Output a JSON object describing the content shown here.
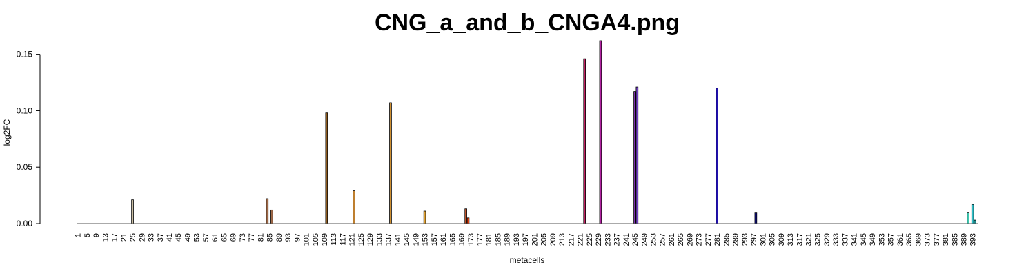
{
  "chart_data": {
    "type": "bar",
    "title": "CNG_a_and_b_CNGA4.png",
    "xlabel": "metacells",
    "ylabel": "log2FC",
    "n_bars": 395,
    "ylim": [
      0,
      0.162
    ],
    "yticks": [
      0.0,
      0.05,
      0.1,
      0.15
    ],
    "ytick_labels": [
      "0.00",
      "0.05",
      "0.10",
      "0.15"
    ],
    "xtick_labels": [
      "1",
      "5",
      "9",
      "13",
      "17",
      "21",
      "25",
      "29",
      "33",
      "37",
      "41",
      "45",
      "49",
      "53",
      "57",
      "61",
      "65",
      "69",
      "73",
      "77",
      "81",
      "85",
      "89",
      "93",
      "97",
      "101",
      "105",
      "109",
      "113",
      "117",
      "121",
      "125",
      "129",
      "133",
      "137",
      "141",
      "145",
      "149",
      "153",
      "157",
      "161",
      "165",
      "169",
      "173",
      "177",
      "181",
      "185",
      "189",
      "193",
      "197",
      "201",
      "205",
      "209",
      "213",
      "217",
      "221",
      "225",
      "229",
      "233",
      "237",
      "241",
      "245",
      "249",
      "253",
      "257",
      "261",
      "265",
      "269",
      "273",
      "277",
      "281",
      "285",
      "289",
      "293",
      "297",
      "301",
      "305",
      "309",
      "313",
      "317",
      "321",
      "325",
      "329",
      "333",
      "337",
      "341",
      "345",
      "349",
      "353",
      "357",
      "361",
      "365",
      "369",
      "373",
      "377",
      "381",
      "385",
      "389",
      "393"
    ],
    "bars": [
      {
        "metacell": 25,
        "value": 0.021,
        "color": "#c8bca0"
      },
      {
        "metacell": 84,
        "value": 0.022,
        "color": "#a06a48"
      },
      {
        "metacell": 86,
        "value": 0.012,
        "color": "#a06a48"
      },
      {
        "metacell": 110,
        "value": 0.098,
        "color": "#8c5a1e"
      },
      {
        "metacell": 122,
        "value": 0.029,
        "color": "#c08030"
      },
      {
        "metacell": 138,
        "value": 0.107,
        "color": "#d09030"
      },
      {
        "metacell": 153,
        "value": 0.011,
        "color": "#e0a030"
      },
      {
        "metacell": 171,
        "value": 0.013,
        "color": "#e06030"
      },
      {
        "metacell": 172,
        "value": 0.005,
        "color": "#e04010"
      },
      {
        "metacell": 223,
        "value": 0.146,
        "color": "#c02060"
      },
      {
        "metacell": 230,
        "value": 0.162,
        "color": "#b020a0"
      },
      {
        "metacell": 245,
        "value": 0.117,
        "color": "#8030b0"
      },
      {
        "metacell": 246,
        "value": 0.121,
        "color": "#7040c0"
      },
      {
        "metacell": 281,
        "value": 0.12,
        "color": "#2010b0"
      },
      {
        "metacell": 298,
        "value": 0.01,
        "color": "#1010a0"
      },
      {
        "metacell": 391,
        "value": 0.01,
        "color": "#40c8b0"
      },
      {
        "metacell": 393,
        "value": 0.017,
        "color": "#30c0c8"
      },
      {
        "metacell": 394,
        "value": 0.003,
        "color": "#208888"
      }
    ]
  }
}
